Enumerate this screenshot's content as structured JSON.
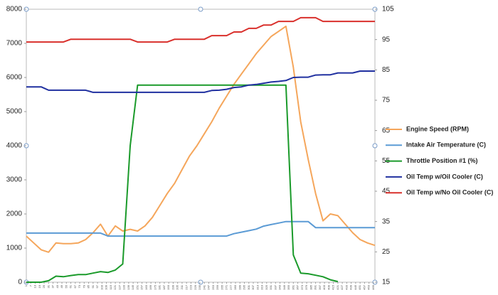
{
  "chart_data": {
    "type": "line",
    "x": [
      1,
      11,
      21,
      31,
      41,
      51,
      61,
      71,
      81,
      91,
      101,
      111,
      121,
      131,
      141,
      151,
      161,
      171,
      181,
      191,
      201,
      211,
      221,
      231,
      241,
      251,
      261,
      271,
      281,
      291,
      301,
      311,
      321,
      331,
      341,
      351,
      361,
      371,
      381,
      391,
      401,
      411,
      421,
      431,
      441,
      451,
      461,
      471
    ],
    "xlim": [
      1,
      471
    ],
    "xticks": [
      1,
      7,
      13,
      19,
      25,
      31,
      37,
      43,
      49,
      55,
      61,
      67,
      73,
      79,
      85,
      91,
      97,
      103,
      109,
      115,
      121,
      127,
      133,
      139,
      145,
      151,
      157,
      163,
      169,
      175,
      181,
      187,
      193,
      199,
      205,
      211,
      217,
      223,
      229,
      235,
      241,
      247,
      253,
      259,
      265,
      271,
      277,
      283,
      289,
      295,
      301,
      307,
      313,
      319,
      325,
      331,
      337,
      343,
      349,
      355,
      361,
      367,
      373,
      379,
      385,
      391,
      397,
      403,
      409,
      415,
      421,
      427,
      433,
      439,
      445,
      451,
      457,
      463,
      469
    ],
    "ylim": [
      0,
      8000
    ],
    "yticks": [
      0,
      1000,
      2000,
      3000,
      4000,
      5000,
      6000,
      7000,
      8000
    ],
    "y2lim": [
      15,
      105
    ],
    "y2ticks": [
      15,
      25,
      35,
      45,
      55,
      65,
      75,
      85,
      95,
      105
    ],
    "legend": "right",
    "series": [
      {
        "name": "Engine Speed (RPM)",
        "color": "#f5a65b",
        "axis": "y",
        "values": [
          1350,
          1150,
          950,
          880,
          1150,
          1130,
          1130,
          1150,
          1250,
          1450,
          1700,
          1350,
          1650,
          1500,
          1550,
          1500,
          1650,
          1900,
          2250,
          2600,
          2900,
          3300,
          3700,
          4000,
          4350,
          4700,
          5100,
          5450,
          5800,
          6100,
          6400,
          6700,
          6950,
          7200,
          7350,
          7500,
          6300,
          4700,
          3600,
          2600,
          1800,
          2000,
          1950,
          1700,
          1450,
          1250,
          1150,
          1080
        ]
      },
      {
        "name": "Intake Air Temperature (C)",
        "color": "#5b9bd5",
        "axis": "y2",
        "values": [
          31.2,
          31.2,
          31.2,
          31.2,
          31.2,
          31.2,
          31.2,
          31.2,
          31.2,
          31.2,
          31.2,
          30.2,
          30.2,
          30.2,
          30.2,
          30.2,
          30.2,
          30.2,
          30.2,
          30.2,
          30.2,
          30.2,
          30.2,
          30.2,
          30.2,
          30.2,
          30.2,
          30.2,
          31,
          31.5,
          32,
          32.5,
          33.5,
          34,
          34.5,
          35,
          35,
          35,
          35,
          33,
          33,
          33,
          33,
          33,
          33,
          33,
          33,
          33
        ]
      },
      {
        "name": "Throttle Position #1 (%)",
        "color": "#1a9a2a",
        "axis": "y2",
        "values": [
          15,
          15,
          15,
          15.5,
          17,
          16.8,
          17.2,
          17.5,
          17.5,
          18,
          18.5,
          18.2,
          19,
          21,
          60,
          80,
          80,
          80,
          80,
          80,
          80,
          80,
          80,
          80,
          80,
          80,
          80,
          80,
          80,
          80,
          80,
          80,
          80,
          80,
          80,
          80,
          24,
          18,
          17.8,
          17.3,
          16.8,
          15.8,
          15.2,
          null,
          null,
          null,
          null,
          null
        ]
      },
      {
        "name": "Oil Temp w/Oil Cooler (C)",
        "color": "#2030a0",
        "axis": "y2",
        "values": [
          79.4,
          79.4,
          79.4,
          78.3,
          78.3,
          78.3,
          78.3,
          78.3,
          78.3,
          77.6,
          77.6,
          77.6,
          77.6,
          77.6,
          77.6,
          77.6,
          77.6,
          77.6,
          77.6,
          77.6,
          77.6,
          77.6,
          77.6,
          77.6,
          77.6,
          78.2,
          78.3,
          78.6,
          79.2,
          79.4,
          80,
          80.2,
          80.6,
          81,
          81.2,
          81.5,
          82.5,
          82.6,
          82.6,
          83.3,
          83.4,
          83.4,
          84,
          84,
          84,
          84.6,
          84.6,
          84.6
        ]
      },
      {
        "name": "Oil Temp w/No Oil Cooler (C)",
        "color": "#d9302c",
        "axis": "y2",
        "values": [
          94.2,
          94.2,
          94.2,
          94.2,
          94.2,
          94.2,
          95.1,
          95.1,
          95.1,
          95.1,
          95.1,
          95.1,
          95.1,
          95.1,
          95.1,
          94.2,
          94.2,
          94.2,
          94.2,
          94.2,
          95.1,
          95.1,
          95.1,
          95.1,
          95.1,
          96.3,
          96.3,
          96.3,
          97.5,
          97.5,
          98.7,
          98.7,
          99.8,
          99.8,
          101,
          101,
          101,
          102.2,
          102.2,
          102.2,
          101,
          101,
          101,
          101,
          101,
          101,
          101,
          101
        ]
      }
    ]
  }
}
